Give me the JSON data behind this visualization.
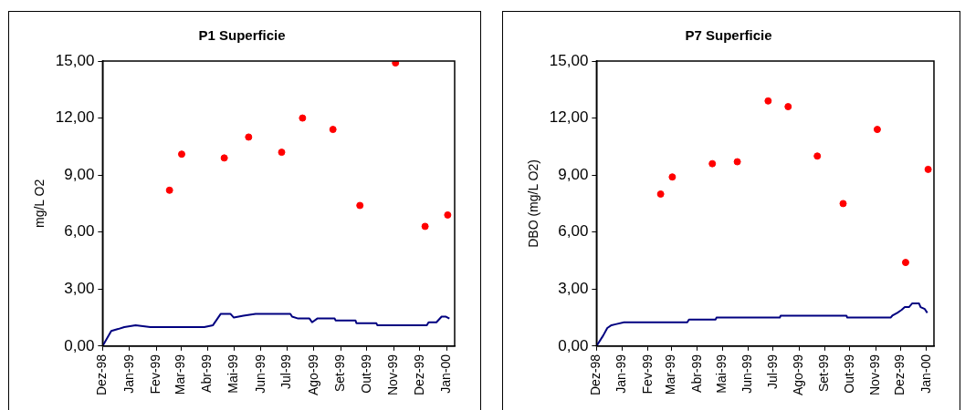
{
  "chart_data": [
    {
      "type": "scatter",
      "title": "P1 Superficie",
      "ylabel": "mg/L O2",
      "xlim": [
        "1998-12-01",
        "2000-01-10"
      ],
      "xticks": [
        {
          "value": "1998-12-01",
          "label": "Dez-98"
        },
        {
          "value": "1999-01-01",
          "label": "Jan-99"
        },
        {
          "value": "1999-02-01",
          "label": "Fev-99"
        },
        {
          "value": "1999-03-01",
          "label": "Mar-99"
        },
        {
          "value": "1999-04-01",
          "label": "Abr-99"
        },
        {
          "value": "1999-05-01",
          "label": "Mai-99"
        },
        {
          "value": "1999-06-01",
          "label": "Jun-99"
        },
        {
          "value": "1999-07-01",
          "label": "Jul-99"
        },
        {
          "value": "1999-08-01",
          "label": "Ago-99"
        },
        {
          "value": "1999-09-01",
          "label": "Set-99"
        },
        {
          "value": "1999-10-01",
          "label": "Out-99"
        },
        {
          "value": "1999-11-01",
          "label": "Nov-99"
        },
        {
          "value": "1999-12-01",
          "label": "Dez-99"
        },
        {
          "value": "2000-01-01",
          "label": "Jan-00"
        }
      ],
      "ylim": [
        0,
        15
      ],
      "yticks": [
        {
          "value": 0,
          "label": "0,00"
        },
        {
          "value": 3,
          "label": "3,00"
        },
        {
          "value": 6,
          "label": "6,00"
        },
        {
          "value": 9,
          "label": "9,00"
        },
        {
          "value": 12,
          "label": "12,00"
        },
        {
          "value": 15,
          "label": "15,00"
        }
      ],
      "grid": false,
      "legend": false,
      "series": [
        {
          "type": "scatter",
          "marker": "circle",
          "color": "#ff0000",
          "x": [
            "1999-02-16",
            "1999-03-02",
            "1999-04-20",
            "1999-05-18",
            "1999-06-25",
            "1999-07-19",
            "1999-08-23",
            "1999-09-23",
            "1999-11-03",
            "1999-12-07",
            "2000-01-02"
          ],
          "values": [
            8.2,
            10.1,
            9.9,
            11.0,
            10.2,
            12.0,
            11.4,
            7.4,
            14.9,
            6.3,
            6.9
          ]
        },
        {
          "type": "line",
          "marker": "none",
          "color": "#000080",
          "x": [
            "1998-12-01",
            "1998-12-11",
            "1998-12-19",
            "1998-12-26",
            "1999-01-08",
            "1999-01-25",
            "1999-03-28",
            "1999-04-07",
            "1999-04-16",
            "1999-04-27",
            "1999-05-01",
            "1999-05-12",
            "1999-05-26",
            "1999-07-05",
            "1999-07-07",
            "1999-07-14",
            "1999-07-27",
            "1999-07-30",
            "1999-08-05",
            "1999-08-25",
            "1999-08-26",
            "1999-09-18",
            "1999-09-19",
            "1999-10-12",
            "1999-10-13",
            "1999-12-09",
            "1999-12-11",
            "1999-12-20",
            "1999-12-26",
            "1999-12-31",
            "2000-01-04"
          ],
          "values": [
            0,
            0.8,
            0.9,
            1.0,
            1.1,
            1.0,
            1.0,
            1.1,
            1.7,
            1.7,
            1.5,
            1.6,
            1.7,
            1.7,
            1.55,
            1.45,
            1.45,
            1.25,
            1.45,
            1.45,
            1.35,
            1.35,
            1.2,
            1.2,
            1.1,
            1.1,
            1.25,
            1.25,
            1.55,
            1.55,
            1.45
          ]
        }
      ]
    },
    {
      "type": "scatter",
      "title": "P7 Superficie",
      "ylabel": "DBO (mg/L O2)",
      "xlim": [
        "1998-12-01",
        "2000-01-10"
      ],
      "xticks": [
        {
          "value": "1998-12-01",
          "label": "Dez-98"
        },
        {
          "value": "1999-01-01",
          "label": "Jan-99"
        },
        {
          "value": "1999-02-01",
          "label": "Fev-99"
        },
        {
          "value": "1999-03-01",
          "label": "Mar-99"
        },
        {
          "value": "1999-04-01",
          "label": "Abr-99"
        },
        {
          "value": "1999-05-01",
          "label": "Mai-99"
        },
        {
          "value": "1999-06-01",
          "label": "Jun-99"
        },
        {
          "value": "1999-07-01",
          "label": "Jul-99"
        },
        {
          "value": "1999-08-01",
          "label": "Ago-99"
        },
        {
          "value": "1999-09-01",
          "label": "Set-99"
        },
        {
          "value": "1999-10-01",
          "label": "Out-99"
        },
        {
          "value": "1999-11-01",
          "label": "Nov-99"
        },
        {
          "value": "1999-12-01",
          "label": "Dez-99"
        },
        {
          "value": "2000-01-01",
          "label": "Jan-00"
        }
      ],
      "ylim": [
        0,
        15
      ],
      "yticks": [
        {
          "value": 0,
          "label": "0,00"
        },
        {
          "value": 3,
          "label": "3,00"
        },
        {
          "value": 6,
          "label": "6,00"
        },
        {
          "value": 9,
          "label": "9,00"
        },
        {
          "value": 12,
          "label": "12,00"
        },
        {
          "value": 15,
          "label": "15,00"
        }
      ],
      "grid": false,
      "legend": false,
      "series": [
        {
          "type": "scatter",
          "marker": "circle",
          "color": "#ff0000",
          "x": [
            "1999-02-16",
            "1999-03-02",
            "1999-04-19",
            "1999-05-19",
            "1999-06-25",
            "1999-07-19",
            "1999-08-23",
            "1999-09-23",
            "1999-11-03",
            "1999-12-07",
            "2000-01-03"
          ],
          "values": [
            8.0,
            8.9,
            9.6,
            9.7,
            12.9,
            12.6,
            10.0,
            7.5,
            11.4,
            4.4,
            9.3
          ]
        },
        {
          "type": "line",
          "marker": "none",
          "color": "#000080",
          "x": [
            "1998-12-01",
            "1998-12-09",
            "1998-12-14",
            "1998-12-19",
            "1998-12-24",
            "1999-01-03",
            "1999-03-20",
            "1999-03-22",
            "1999-04-23",
            "1999-04-24",
            "1999-07-09",
            "1999-07-10",
            "1999-09-27",
            "1999-09-28",
            "1999-11-19",
            "1999-11-21",
            "1999-11-27",
            "1999-12-02",
            "1999-12-06",
            "1999-12-11",
            "1999-12-15",
            "1999-12-23",
            "1999-12-25",
            "1999-12-30",
            "2000-01-02"
          ],
          "values": [
            0,
            0.55,
            0.95,
            1.1,
            1.15,
            1.25,
            1.25,
            1.4,
            1.4,
            1.5,
            1.5,
            1.6,
            1.6,
            1.5,
            1.5,
            1.6,
            1.75,
            1.9,
            2.05,
            2.05,
            2.25,
            2.25,
            2.05,
            1.95,
            1.75
          ]
        }
      ]
    }
  ]
}
